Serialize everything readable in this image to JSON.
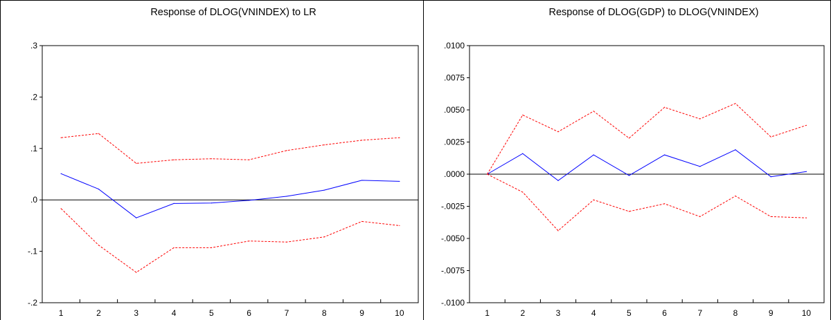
{
  "chart_data": [
    {
      "type": "line",
      "title": "Response of DLOG(VNINDEX) to LR",
      "xlabel": "",
      "ylabel": "",
      "x": [
        1,
        2,
        3,
        4,
        5,
        6,
        7,
        8,
        9,
        10
      ],
      "ylim": [
        -0.2,
        0.3
      ],
      "yticks": [
        -0.2,
        -0.1,
        0.0,
        0.1,
        0.2,
        0.3
      ],
      "ytick_labels": [
        "-.2",
        "-.1",
        ".0",
        ".1",
        ".2",
        ".3"
      ],
      "xtick_labels": [
        "1",
        "2",
        "3",
        "4",
        "5",
        "6",
        "7",
        "8",
        "9",
        "10"
      ],
      "zero_line": true,
      "grid": false,
      "series": [
        {
          "values": [
            0.051,
            0.021,
            -0.035,
            -0.007,
            -0.006,
            -0.001,
            0.007,
            0.019,
            0.038,
            0.036
          ],
          "color": "#0000ff",
          "style": "solid"
        },
        {
          "values": [
            0.121,
            0.129,
            0.071,
            0.078,
            0.08,
            0.078,
            0.096,
            0.107,
            0.116,
            0.121
          ],
          "color": "#ff0000",
          "style": "dashed"
        },
        {
          "values": [
            -0.017,
            -0.088,
            -0.141,
            -0.093,
            -0.093,
            -0.08,
            -0.082,
            -0.072,
            -0.042,
            -0.05
          ],
          "color": "#ff0000",
          "style": "dashed"
        }
      ]
    },
    {
      "type": "line",
      "title": "Response of DLOG(GDP) to DLOG(VNINDEX)",
      "xlabel": "",
      "ylabel": "",
      "x": [
        1,
        2,
        3,
        4,
        5,
        6,
        7,
        8,
        9,
        10
      ],
      "ylim": [
        -0.01,
        0.01
      ],
      "yticks": [
        -0.01,
        -0.0075,
        -0.005,
        -0.0025,
        0.0,
        0.0025,
        0.005,
        0.0075,
        0.01
      ],
      "ytick_labels": [
        "-.0100",
        "-.0075",
        "-.0050",
        "-.0025",
        ".0000",
        ".0025",
        ".0050",
        ".0075",
        ".0100"
      ],
      "xtick_labels": [
        "1",
        "2",
        "3",
        "4",
        "5",
        "6",
        "7",
        "8",
        "9",
        "10"
      ],
      "zero_line": true,
      "grid": false,
      "series": [
        {
          "values": [
            0.0,
            0.0016,
            -0.0005,
            0.0015,
            -0.0001,
            0.0015,
            0.0006,
            0.0019,
            -0.0002,
            0.0002
          ],
          "color": "#0000ff",
          "style": "solid"
        },
        {
          "values": [
            0.0,
            0.0046,
            0.0033,
            0.0049,
            0.0028,
            0.0052,
            0.0043,
            0.0055,
            0.0029,
            0.0038
          ],
          "color": "#ff0000",
          "style": "dashed"
        },
        {
          "values": [
            0.0,
            -0.0014,
            -0.0044,
            -0.002,
            -0.0029,
            -0.0023,
            -0.0033,
            -0.0017,
            -0.0033,
            -0.0034
          ],
          "color": "#ff0000",
          "style": "dashed"
        }
      ]
    }
  ]
}
